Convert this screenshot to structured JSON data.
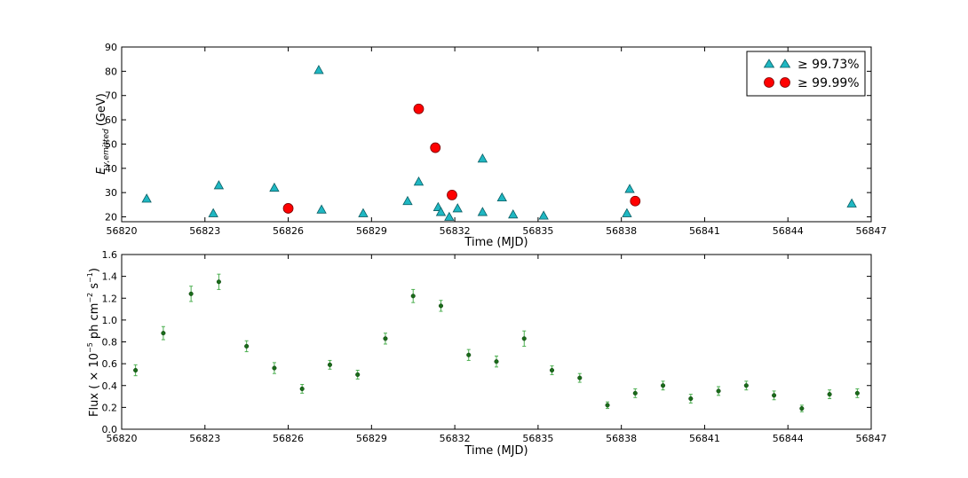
{
  "chart_data": [
    {
      "type": "scatter",
      "xlabel": "Time (MJD)",
      "ylabel_main": "E",
      "ylabel_sub": "γ,emitted",
      "ylabel_unit": "(GeV)",
      "xlim": [
        56820,
        56847
      ],
      "ylim": [
        18,
        90
      ],
      "xticks": [
        56820,
        56823,
        56826,
        56829,
        56832,
        56835,
        56838,
        56841,
        56844,
        56847
      ],
      "yticks": [
        20,
        30,
        40,
        50,
        60,
        70,
        80,
        90
      ],
      "legend_position": "top-right",
      "series": [
        {
          "name": "≥ 99.73%",
          "marker": "triangle",
          "color": "#1fb7c2",
          "x": [
            56820.9,
            56823.3,
            56823.5,
            56825.5,
            56827.1,
            56827.2,
            56828.7,
            56830.3,
            56830.7,
            56831.4,
            56831.5,
            56831.8,
            56832.1,
            56833.0,
            56833.0,
            56833.7,
            56834.1,
            56835.2,
            56838.2,
            56838.3,
            56846.3
          ],
          "y": [
            27.5,
            21.5,
            33,
            32,
            80.5,
            23,
            21.5,
            26.5,
            34.5,
            24,
            22,
            20,
            23.5,
            44,
            22,
            28,
            21,
            20.5,
            21.5,
            31.5,
            25.5
          ]
        },
        {
          "name": "≥ 99.99%",
          "marker": "circle",
          "color": "#ff0000",
          "x": [
            56826.0,
            56830.7,
            56831.3,
            56831.9,
            56838.5
          ],
          "y": [
            23.5,
            64.5,
            48.5,
            29,
            26.5
          ]
        }
      ]
    },
    {
      "type": "scatter",
      "xlabel": "Time (MJD)",
      "ylabel_prefix": "Flux ( × 10",
      "ylabel_exp1": "−5",
      "ylabel_mid": " ph cm",
      "ylabel_exp2": "−2",
      "ylabel_mid2": " s",
      "ylabel_exp3": "−1",
      "ylabel_suffix": ")",
      "xlim": [
        56820,
        56847
      ],
      "ylim": [
        0.0,
        1.6
      ],
      "xticks": [
        56820,
        56823,
        56826,
        56829,
        56832,
        56835,
        56838,
        56841,
        56844,
        56847
      ],
      "yticks": [
        "0.0",
        "0.2",
        "0.4",
        "0.6",
        "0.8",
        "1.0",
        "1.2",
        "1.4",
        "1.6"
      ],
      "series": [
        {
          "marker": "dot-errorbar",
          "color": "#1a6b1a",
          "x": [
            56820.5,
            56821.5,
            56822.5,
            56823.5,
            56824.5,
            56825.5,
            56826.5,
            56827.5,
            56828.5,
            56829.5,
            56830.5,
            56831.5,
            56832.5,
            56833.5,
            56834.5,
            56835.5,
            56836.5,
            56837.5,
            56838.5,
            56839.5,
            56840.5,
            56841.5,
            56842.5,
            56843.5,
            56844.5,
            56845.5,
            56846.5
          ],
          "y": [
            0.54,
            0.88,
            1.24,
            1.35,
            0.76,
            0.56,
            0.37,
            0.59,
            0.5,
            0.83,
            1.22,
            1.13,
            0.68,
            0.62,
            0.83,
            0.54,
            0.47,
            0.22,
            0.33,
            0.4,
            0.28,
            0.35,
            0.4,
            0.31,
            0.19,
            0.32,
            0.33
          ],
          "err": [
            0.05,
            0.06,
            0.07,
            0.07,
            0.05,
            0.05,
            0.04,
            0.04,
            0.04,
            0.05,
            0.06,
            0.05,
            0.05,
            0.05,
            0.07,
            0.04,
            0.04,
            0.03,
            0.04,
            0.04,
            0.04,
            0.04,
            0.04,
            0.04,
            0.03,
            0.04,
            0.04
          ]
        }
      ]
    }
  ]
}
